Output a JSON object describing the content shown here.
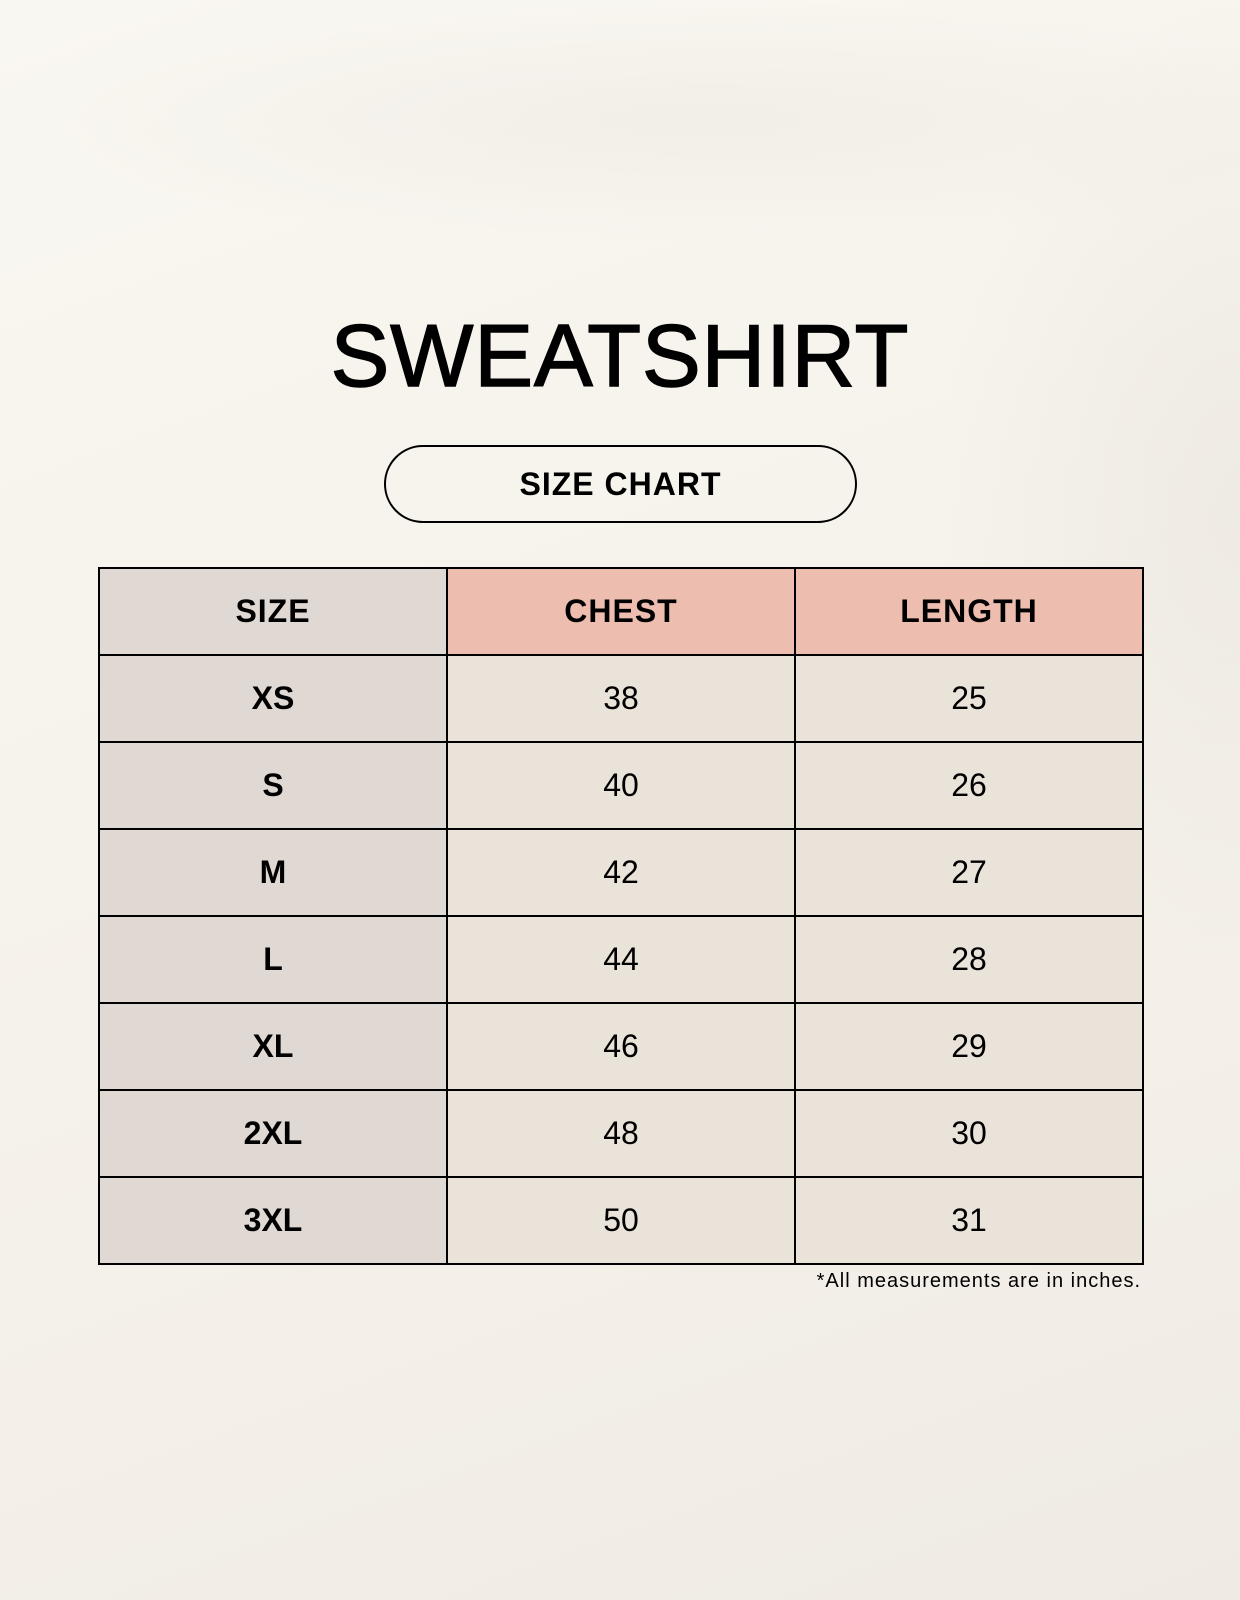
{
  "title": "SWEATSHIRT",
  "subtitle": "SIZE CHART",
  "colors": {
    "size_column": "#e0d9d3",
    "header_highlight": "#edbdb0",
    "cell": "#eae3d9"
  },
  "table": {
    "headers": [
      "SIZE",
      "CHEST",
      "LENGTH"
    ],
    "rows": [
      [
        "XS",
        "38",
        "25"
      ],
      [
        "S",
        "40",
        "26"
      ],
      [
        "M",
        "42",
        "27"
      ],
      [
        "L",
        "44",
        "28"
      ],
      [
        "XL",
        "46",
        "29"
      ],
      [
        "2XL",
        "48",
        "30"
      ],
      [
        "3XL",
        "50",
        "31"
      ]
    ]
  },
  "footnote": "*All measurements are in inches."
}
